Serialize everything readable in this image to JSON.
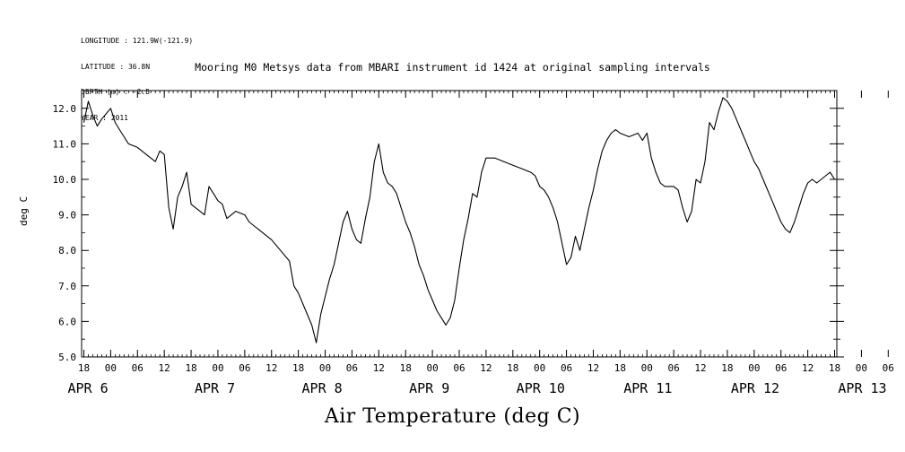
{
  "header": {
    "meta_lines": [
      "LONGITUDE : 121.9W(-121.9)",
      "LATITUDE : 36.8N",
      "DEPTH (m) : -2.5",
      "YEAR : 2011"
    ]
  },
  "chart_data": {
    "type": "line",
    "title": "Mooring M0 Metsys data from MBARI instrument id 1424 at original sampling intervals",
    "xlabel": "Air Temperature (deg C)",
    "ylabel": "deg C",
    "ylim": [
      5.0,
      12.5
    ],
    "yticks": [
      "5.0",
      "6.0",
      "7.0",
      "8.0",
      "9.0",
      "10.0",
      "11.0",
      "12.0"
    ],
    "xlim_hours_from_apr6_00": [
      17.5,
      186.5
    ],
    "hour_ticks": [
      "18",
      "00",
      "06",
      "12",
      "18",
      "00",
      "06",
      "12",
      "18",
      "00",
      "06",
      "12",
      "18",
      "00",
      "06",
      "12",
      "18",
      "00",
      "06",
      "12",
      "18",
      "00",
      "06",
      "12",
      "18",
      "00",
      "06",
      "12",
      "18",
      "00",
      "06",
      "12",
      "18"
    ],
    "date_labels": [
      "APR  6",
      "APR  7",
      "APR  8",
      "APR  9",
      "APR 10",
      "APR 11",
      "APR 12",
      "APR 13"
    ],
    "series": [
      {
        "line_color": "#000000",
        "points": [
          [
            18,
            11.6
          ],
          [
            19,
            12.2
          ],
          [
            20,
            11.8
          ],
          [
            21,
            11.5
          ],
          [
            22,
            11.7
          ],
          [
            24,
            12.0
          ],
          [
            25,
            11.6
          ],
          [
            26,
            11.4
          ],
          [
            27,
            11.2
          ],
          [
            28,
            11.0
          ],
          [
            30,
            10.9
          ],
          [
            32,
            10.7
          ],
          [
            34,
            10.5
          ],
          [
            35,
            10.8
          ],
          [
            36,
            10.7
          ],
          [
            37,
            9.2
          ],
          [
            38,
            8.6
          ],
          [
            39,
            9.5
          ],
          [
            40,
            9.8
          ],
          [
            41,
            10.2
          ],
          [
            42,
            9.3
          ],
          [
            43,
            9.2
          ],
          [
            44,
            9.1
          ],
          [
            45,
            9.0
          ],
          [
            46,
            9.8
          ],
          [
            47,
            9.6
          ],
          [
            48,
            9.4
          ],
          [
            49,
            9.3
          ],
          [
            50,
            8.9
          ],
          [
            52,
            9.1
          ],
          [
            54,
            9.0
          ],
          [
            55,
            8.8
          ],
          [
            56,
            8.7
          ],
          [
            58,
            8.5
          ],
          [
            60,
            8.3
          ],
          [
            62,
            8.0
          ],
          [
            64,
            7.7
          ],
          [
            65,
            7.0
          ],
          [
            66,
            6.8
          ],
          [
            67,
            6.5
          ],
          [
            68,
            6.2
          ],
          [
            69,
            5.9
          ],
          [
            70,
            5.4
          ],
          [
            71,
            6.2
          ],
          [
            72,
            6.7
          ],
          [
            73,
            7.2
          ],
          [
            74,
            7.6
          ],
          [
            75,
            8.2
          ],
          [
            76,
            8.8
          ],
          [
            77,
            9.1
          ],
          [
            78,
            8.6
          ],
          [
            79,
            8.3
          ],
          [
            80,
            8.2
          ],
          [
            81,
            8.9
          ],
          [
            82,
            9.5
          ],
          [
            83,
            10.5
          ],
          [
            84,
            11.0
          ],
          [
            85,
            10.2
          ],
          [
            86,
            9.9
          ],
          [
            87,
            9.8
          ],
          [
            88,
            9.6
          ],
          [
            89,
            9.2
          ],
          [
            90,
            8.8
          ],
          [
            91,
            8.5
          ],
          [
            92,
            8.1
          ],
          [
            93,
            7.6
          ],
          [
            94,
            7.3
          ],
          [
            95,
            6.9
          ],
          [
            96,
            6.6
          ],
          [
            97,
            6.3
          ],
          [
            98,
            6.1
          ],
          [
            99,
            5.9
          ],
          [
            100,
            6.1
          ],
          [
            101,
            6.6
          ],
          [
            102,
            7.5
          ],
          [
            103,
            8.3
          ],
          [
            104,
            8.9
          ],
          [
            105,
            9.6
          ],
          [
            106,
            9.5
          ],
          [
            107,
            10.2
          ],
          [
            108,
            10.6
          ],
          [
            110,
            10.6
          ],
          [
            112,
            10.5
          ],
          [
            114,
            10.4
          ],
          [
            116,
            10.3
          ],
          [
            118,
            10.2
          ],
          [
            119,
            10.1
          ],
          [
            120,
            9.8
          ],
          [
            121,
            9.7
          ],
          [
            122,
            9.5
          ],
          [
            123,
            9.2
          ],
          [
            124,
            8.8
          ],
          [
            125,
            8.2
          ],
          [
            126,
            7.6
          ],
          [
            127,
            7.8
          ],
          [
            128,
            8.4
          ],
          [
            129,
            8.0
          ],
          [
            130,
            8.6
          ],
          [
            131,
            9.2
          ],
          [
            132,
            9.7
          ],
          [
            133,
            10.3
          ],
          [
            134,
            10.8
          ],
          [
            135,
            11.1
          ],
          [
            136,
            11.3
          ],
          [
            137,
            11.4
          ],
          [
            138,
            11.3
          ],
          [
            140,
            11.2
          ],
          [
            142,
            11.3
          ],
          [
            143,
            11.1
          ],
          [
            144,
            11.3
          ],
          [
            145,
            10.6
          ],
          [
            146,
            10.2
          ],
          [
            147,
            9.9
          ],
          [
            148,
            9.8
          ],
          [
            150,
            9.8
          ],
          [
            151,
            9.7
          ],
          [
            152,
            9.2
          ],
          [
            153,
            8.8
          ],
          [
            154,
            9.1
          ],
          [
            155,
            10.0
          ],
          [
            156,
            9.9
          ],
          [
            157,
            10.5
          ],
          [
            158,
            11.6
          ],
          [
            159,
            11.4
          ],
          [
            160,
            11.9
          ],
          [
            161,
            12.3
          ],
          [
            162,
            12.2
          ],
          [
            163,
            12.0
          ],
          [
            164,
            11.7
          ],
          [
            165,
            11.4
          ],
          [
            166,
            11.1
          ],
          [
            167,
            10.8
          ],
          [
            168,
            10.5
          ],
          [
            169,
            10.3
          ],
          [
            170,
            10.0
          ],
          [
            171,
            9.7
          ],
          [
            172,
            9.4
          ],
          [
            173,
            9.1
          ],
          [
            174,
            8.8
          ],
          [
            175,
            8.6
          ],
          [
            176,
            8.5
          ],
          [
            177,
            8.8
          ],
          [
            178,
            9.2
          ],
          [
            179,
            9.6
          ],
          [
            180,
            9.9
          ],
          [
            181,
            10.0
          ],
          [
            182,
            9.9
          ],
          [
            183,
            10.0
          ],
          [
            184,
            10.1
          ],
          [
            185,
            10.2
          ],
          [
            186,
            10.0
          ]
        ]
      }
    ]
  }
}
